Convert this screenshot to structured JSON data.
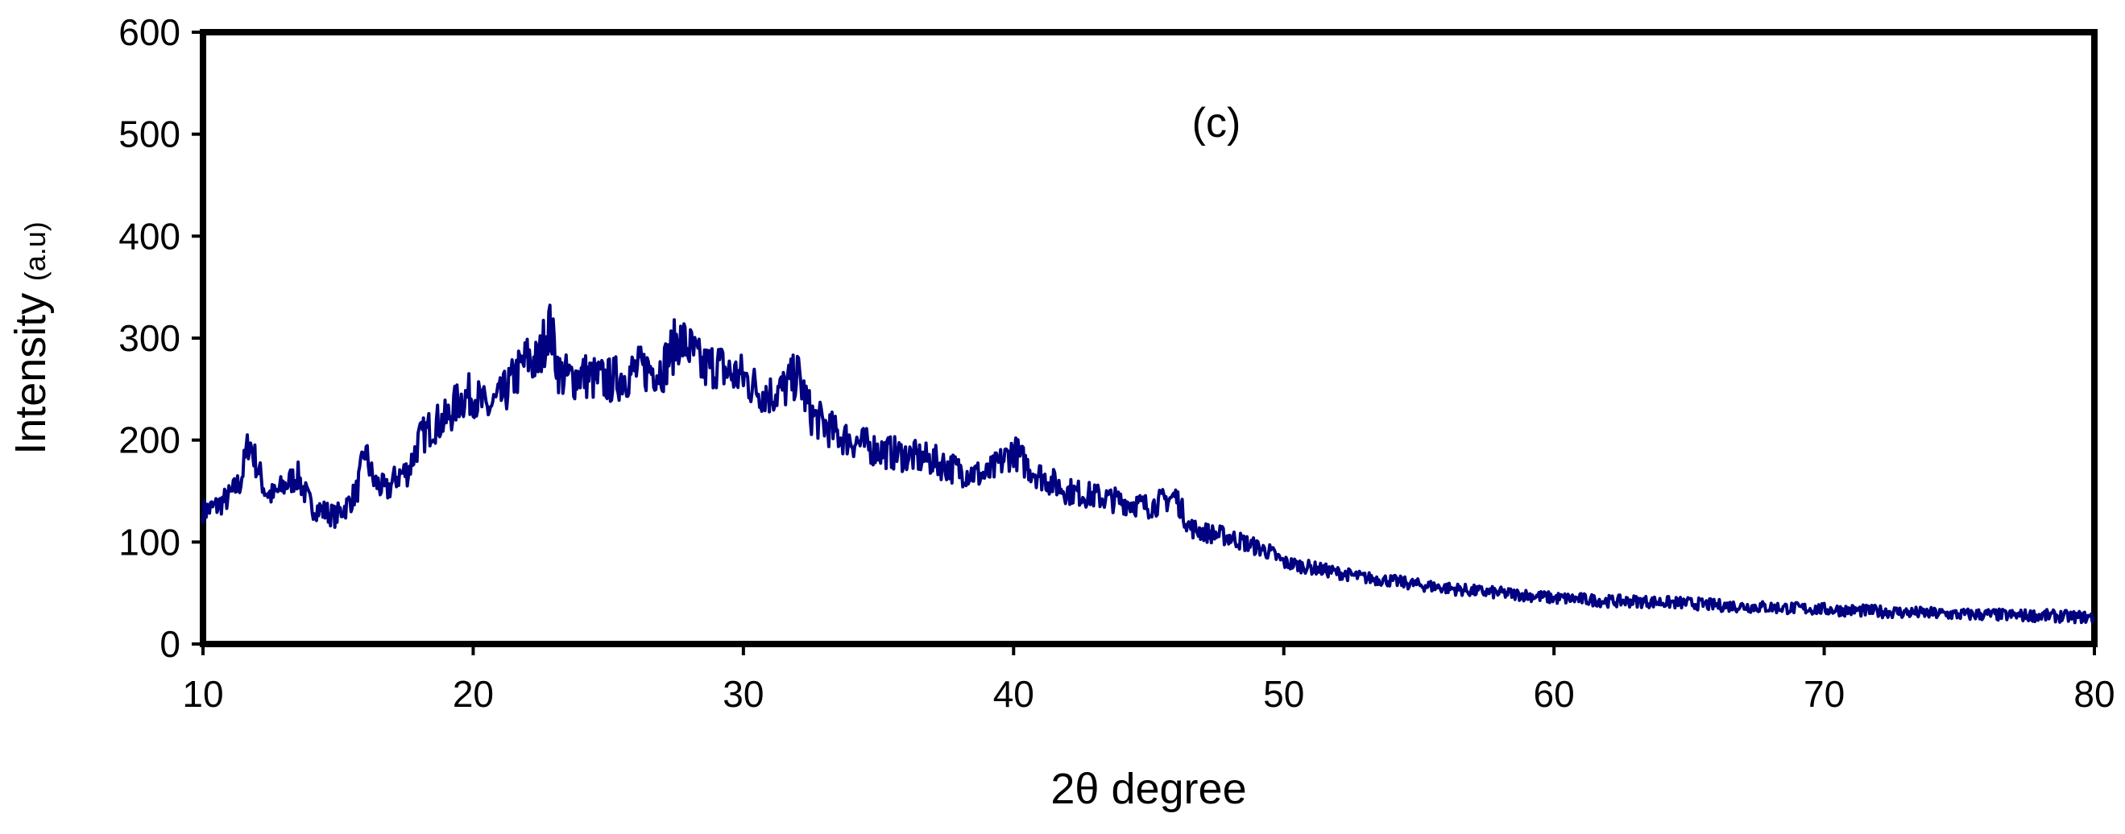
{
  "chart_data": {
    "type": "line",
    "annotation": "(c)",
    "xlabel": "2θ degree",
    "ylabel_main": "Intensity",
    "ylabel_unit": "(a.u)",
    "xlim": [
      10,
      80
    ],
    "ylim": [
      0,
      600
    ],
    "xticks": [
      10,
      20,
      30,
      40,
      50,
      60,
      70,
      80
    ],
    "yticks": [
      0,
      100,
      200,
      300,
      400,
      500,
      600
    ],
    "grid": false,
    "legend": "none",
    "line_color": "#000080",
    "series": [
      {
        "x": [
          10,
          10.5,
          11,
          11.4,
          11.7,
          12,
          12.3,
          12.6,
          13,
          13.5,
          14,
          14.5,
          14.9,
          15.3,
          15.7,
          16,
          16.3,
          16.8,
          17.2,
          17.6,
          18,
          18.5,
          19,
          19.5,
          20,
          20.5,
          21,
          21.5,
          22,
          22.4,
          22.8,
          23.2,
          23.6,
          24,
          24.5,
          25,
          25.5,
          26,
          26.5,
          27,
          27.3,
          27.6,
          28,
          28.5,
          29,
          29.5,
          30,
          30.5,
          31,
          31.5,
          32,
          32.5,
          33,
          33.5,
          34,
          35,
          36,
          37,
          38,
          39,
          40,
          40.5,
          41,
          42,
          43,
          44,
          45,
          46,
          46.5,
          47,
          48,
          49,
          49.5,
          50,
          51,
          52,
          53,
          54,
          55,
          56,
          57,
          58,
          59,
          60,
          61,
          62,
          63,
          64,
          65,
          66,
          67,
          68,
          69,
          70,
          71,
          72,
          73,
          74,
          75,
          76,
          77,
          78,
          79,
          80
        ],
        "y": [
          130,
          135,
          145,
          160,
          200,
          175,
          150,
          145,
          155,
          165,
          135,
          130,
          125,
          135,
          150,
          190,
          160,
          150,
          165,
          170,
          200,
          215,
          220,
          240,
          245,
          230,
          240,
          260,
          280,
          275,
          315,
          265,
          260,
          265,
          260,
          258,
          262,
          268,
          270,
          270,
          285,
          300,
          290,
          270,
          275,
          265,
          262,
          250,
          245,
          250,
          265,
          225,
          215,
          205,
          200,
          190,
          185,
          180,
          170,
          165,
          190,
          175,
          165,
          150,
          145,
          140,
          135,
          145,
          115,
          110,
          105,
          95,
          90,
          80,
          75,
          70,
          65,
          62,
          58,
          55,
          52,
          50,
          48,
          45,
          44,
          42,
          42,
          41,
          40,
          38,
          37,
          36,
          35,
          34,
          33,
          32,
          31,
          30,
          29,
          29,
          28,
          28,
          27,
          26
        ]
      }
    ]
  }
}
